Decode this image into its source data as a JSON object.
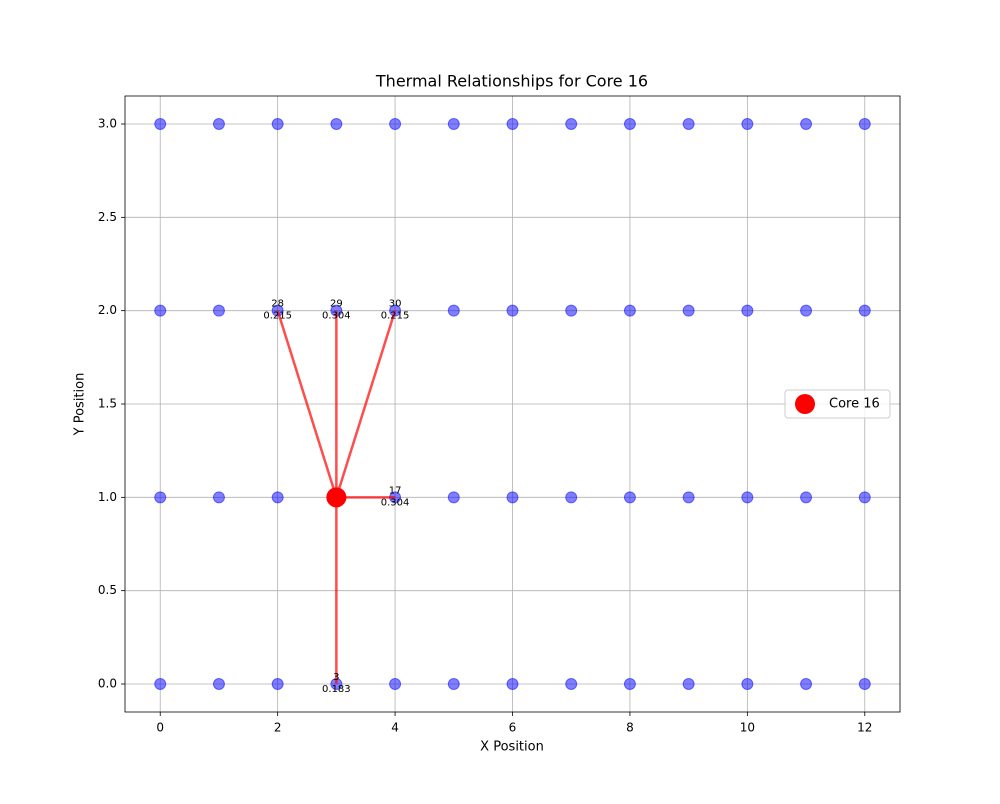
{
  "chart_data": {
    "type": "scatter",
    "title": "Thermal Relationships for Core 16",
    "xlabel": "X Position",
    "ylabel": "Y Position",
    "xlim": [
      -0.6,
      12.6
    ],
    "ylim": [
      -0.15,
      3.15
    ],
    "xticks": [
      0,
      2,
      4,
      6,
      8,
      10,
      12
    ],
    "yticks": [
      {
        "value": 0,
        "label": "0.0"
      },
      {
        "value": 0.5,
        "label": "0.5"
      },
      {
        "value": 1,
        "label": "1.0"
      },
      {
        "value": 1.5,
        "label": "1.5"
      },
      {
        "value": 2,
        "label": "2.0"
      },
      {
        "value": 2.5,
        "label": "2.5"
      },
      {
        "value": 3,
        "label": "3.0"
      }
    ],
    "grid": true,
    "legend": "center right",
    "cores": {
      "color": "#0000ff",
      "x": [
        0,
        1,
        2,
        3,
        4,
        5,
        6,
        7,
        8,
        9,
        10,
        11,
        12,
        0,
        1,
        2,
        3,
        4,
        5,
        6,
        7,
        8,
        9,
        10,
        11,
        12,
        0,
        1,
        2,
        3,
        4,
        5,
        6,
        7,
        8,
        9,
        10,
        11,
        12,
        0,
        1,
        2,
        3,
        4,
        5,
        6,
        7,
        8,
        9,
        10,
        11,
        12
      ],
      "y": [
        0,
        0,
        0,
        0,
        0,
        0,
        0,
        0,
        0,
        0,
        0,
        0,
        0,
        1,
        1,
        1,
        1,
        1,
        1,
        1,
        1,
        1,
        1,
        1,
        1,
        1,
        2,
        2,
        2,
        2,
        2,
        2,
        2,
        2,
        2,
        2,
        2,
        2,
        2,
        3,
        3,
        3,
        3,
        3,
        3,
        3,
        3,
        3,
        3,
        3,
        3,
        3
      ]
    },
    "highlight": {
      "name": "Core 16",
      "color": "#ff0000",
      "x": 3,
      "y": 1
    },
    "edge_color": "#ff0000",
    "edges": [
      {
        "label": "28",
        "x": 2,
        "y": 2,
        "weight": 0.215
      },
      {
        "label": "29",
        "x": 3,
        "y": 2,
        "weight": 0.304
      },
      {
        "label": "30",
        "x": 4,
        "y": 2,
        "weight": 0.215
      },
      {
        "label": "17",
        "x": 4,
        "y": 1,
        "weight": 0.304
      },
      {
        "label": "3",
        "x": 3,
        "y": 0,
        "weight": 0.183
      }
    ]
  }
}
